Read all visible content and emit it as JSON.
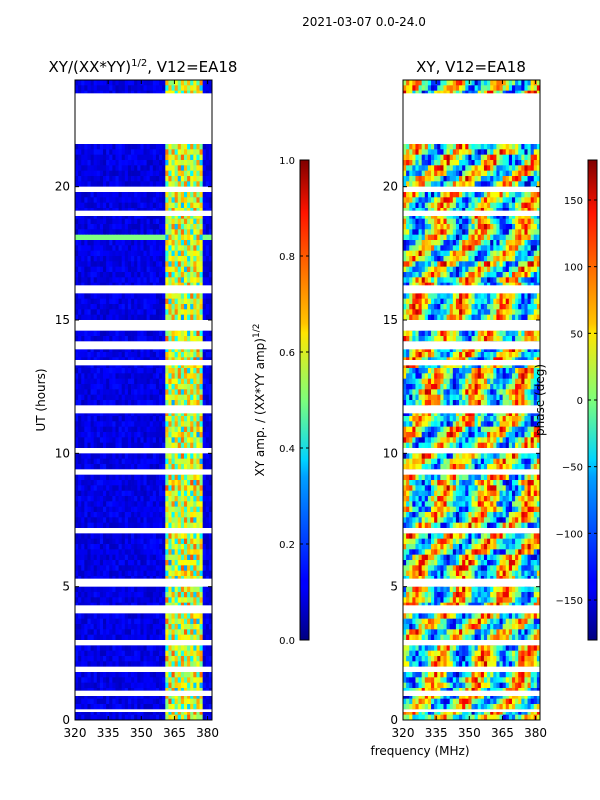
{
  "chart_data": {
    "suptitle": "2021-03-07 0.0-24.0",
    "xlabel_shared": "frequency (MHz)",
    "panels": [
      {
        "type": "heatmap",
        "title_main": "XY/(XX*YY)",
        "title_sup": "1/2",
        "title_suffix": ", V12=EA18",
        "xlabel": "",
        "ylabel": "UT (hours)",
        "x_range": [
          320,
          382
        ],
        "y_range": [
          0,
          24
        ],
        "x_ticks": [
          "320",
          "335",
          "350",
          "365",
          "380"
        ],
        "y_ticks": [
          "0",
          "5",
          "10",
          "15",
          "20"
        ],
        "colorbar": {
          "label_main": "XY amp. / (XX*YY amp)",
          "label_sup": "1/2",
          "range": [
            0.0,
            1.0
          ],
          "ticks": [
            "0.0",
            "0.2",
            "0.4",
            "0.6",
            "0.8",
            "1.0"
          ],
          "colormap": "jet"
        },
        "gaps_hours": [
          [
            21.6,
            23.5
          ],
          [
            19.8,
            20.0
          ],
          [
            18.9,
            19.1
          ],
          [
            16.0,
            16.3
          ],
          [
            14.6,
            15.0
          ],
          [
            13.9,
            14.2
          ],
          [
            13.3,
            13.5
          ],
          [
            11.5,
            11.8
          ],
          [
            10.0,
            10.2
          ],
          [
            9.2,
            9.4
          ],
          [
            7.0,
            7.2
          ],
          [
            5.0,
            5.3
          ],
          [
            4.0,
            4.3
          ],
          [
            2.8,
            3.0
          ],
          [
            1.8,
            2.0
          ],
          [
            0.9,
            1.1
          ],
          [
            0.3,
            0.4
          ]
        ]
      },
      {
        "type": "heatmap",
        "title": "XY, V12=EA18",
        "xlabel": "frequency (MHz)",
        "ylabel": "",
        "x_range": [
          320,
          382
        ],
        "y_range": [
          0,
          24
        ],
        "x_ticks": [
          "320",
          "335",
          "350",
          "365",
          "380"
        ],
        "y_ticks": [
          "0",
          "5",
          "10",
          "15",
          "20"
        ],
        "colorbar": {
          "label": "phase (deg)",
          "range": [
            -180,
            180
          ],
          "ticks": [
            "−150",
            "−100",
            "−50",
            "0",
            "50",
            "100",
            "150"
          ],
          "colormap": "jet"
        },
        "gaps_hours": [
          [
            21.6,
            23.5
          ],
          [
            19.8,
            20.0
          ],
          [
            18.9,
            19.1
          ],
          [
            16.0,
            16.3
          ],
          [
            14.6,
            15.0
          ],
          [
            13.9,
            14.2
          ],
          [
            13.3,
            13.5
          ],
          [
            11.5,
            11.8
          ],
          [
            10.0,
            10.2
          ],
          [
            9.2,
            9.4
          ],
          [
            7.0,
            7.2
          ],
          [
            5.0,
            5.3
          ],
          [
            4.0,
            4.3
          ],
          [
            2.8,
            3.0
          ],
          [
            1.8,
            2.0
          ],
          [
            0.9,
            1.1
          ],
          [
            0.3,
            0.4
          ]
        ]
      }
    ]
  }
}
